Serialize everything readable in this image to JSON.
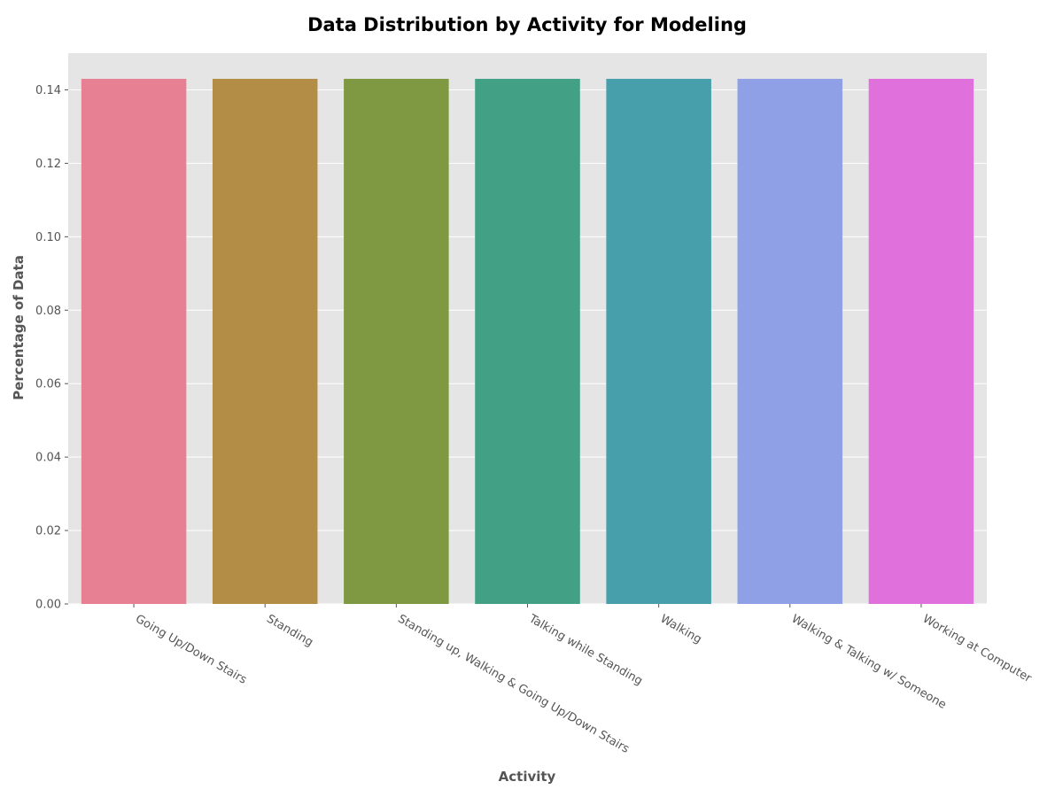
{
  "chart_data": {
    "type": "bar",
    "title": "Data Distribution by Activity for Modeling",
    "xlabel": "Activity",
    "ylabel": "Percentage of Data",
    "categories": [
      "Going Up/Down Stairs",
      "Standing",
      "Standing up, Walking & Going Up/Down Stairs",
      "Talking while Standing",
      "Walking",
      "Walking & Talking w/ Someone",
      "Working at Computer"
    ],
    "values": [
      0.143,
      0.143,
      0.143,
      0.143,
      0.143,
      0.143,
      0.143
    ],
    "colors": [
      "#e88093",
      "#b38d45",
      "#7e9942",
      "#42a085",
      "#479fac",
      "#8fa0e6",
      "#e070dc"
    ],
    "ylim": [
      0,
      0.15
    ],
    "yticks": [
      "0.00",
      "0.02",
      "0.04",
      "0.06",
      "0.08",
      "0.10",
      "0.12",
      "0.14"
    ],
    "grid": true,
    "plot_background": "#e5e5e5",
    "grid_color": "#ffffff"
  }
}
